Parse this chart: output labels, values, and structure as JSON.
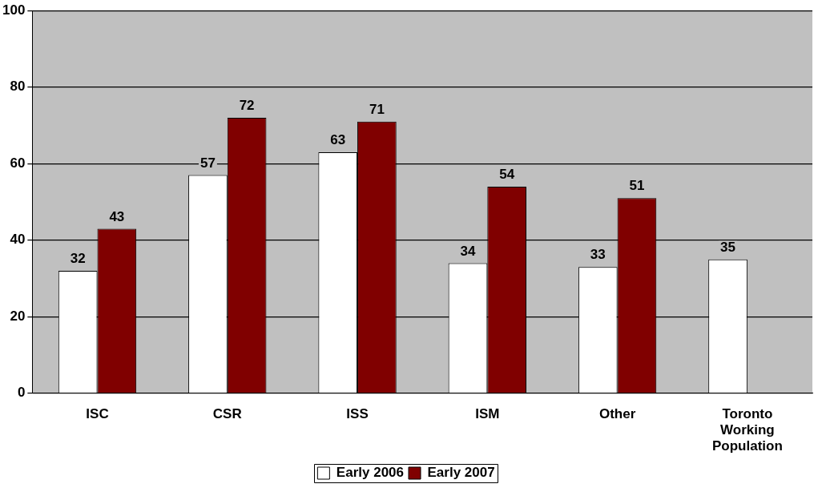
{
  "chart_data": {
    "type": "bar",
    "categories": [
      "ISC",
      "CSR",
      "ISS",
      "ISM",
      "Other",
      "Toronto Working Population"
    ],
    "series": [
      {
        "name": "Early 2006",
        "color": "#ffffff",
        "values": [
          32,
          57,
          63,
          34,
          33,
          35
        ]
      },
      {
        "name": "Early 2007",
        "color": "#800000",
        "values": [
          43,
          72,
          71,
          54,
          51,
          null
        ]
      }
    ],
    "ylim": [
      0,
      100
    ],
    "yticks": [
      0,
      20,
      40,
      60,
      80,
      100
    ],
    "grid": "y",
    "legend": "bottom",
    "data_labels": true
  }
}
